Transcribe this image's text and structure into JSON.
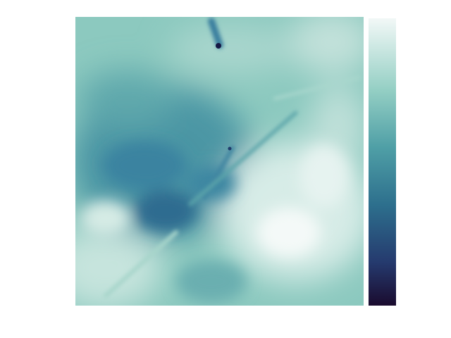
{
  "chart_data": {
    "type": "heatmap",
    "title": "",
    "xlabel": "",
    "ylabel": "",
    "colormap": "ice",
    "colors": {
      "light": "#f0f6f5",
      "mid": "#5ea9a8",
      "dark": "#0f2149"
    },
    "colorbar": {
      "ticks": []
    },
    "features": [
      {
        "name": "dark-core",
        "value": 0.28
      },
      {
        "name": "dark-filament-upper",
        "value": 0.05
      },
      {
        "name": "bright-region-lower-right",
        "value": 0.98
      },
      {
        "name": "bright-region-lower-left",
        "value": 0.9
      }
    ]
  }
}
